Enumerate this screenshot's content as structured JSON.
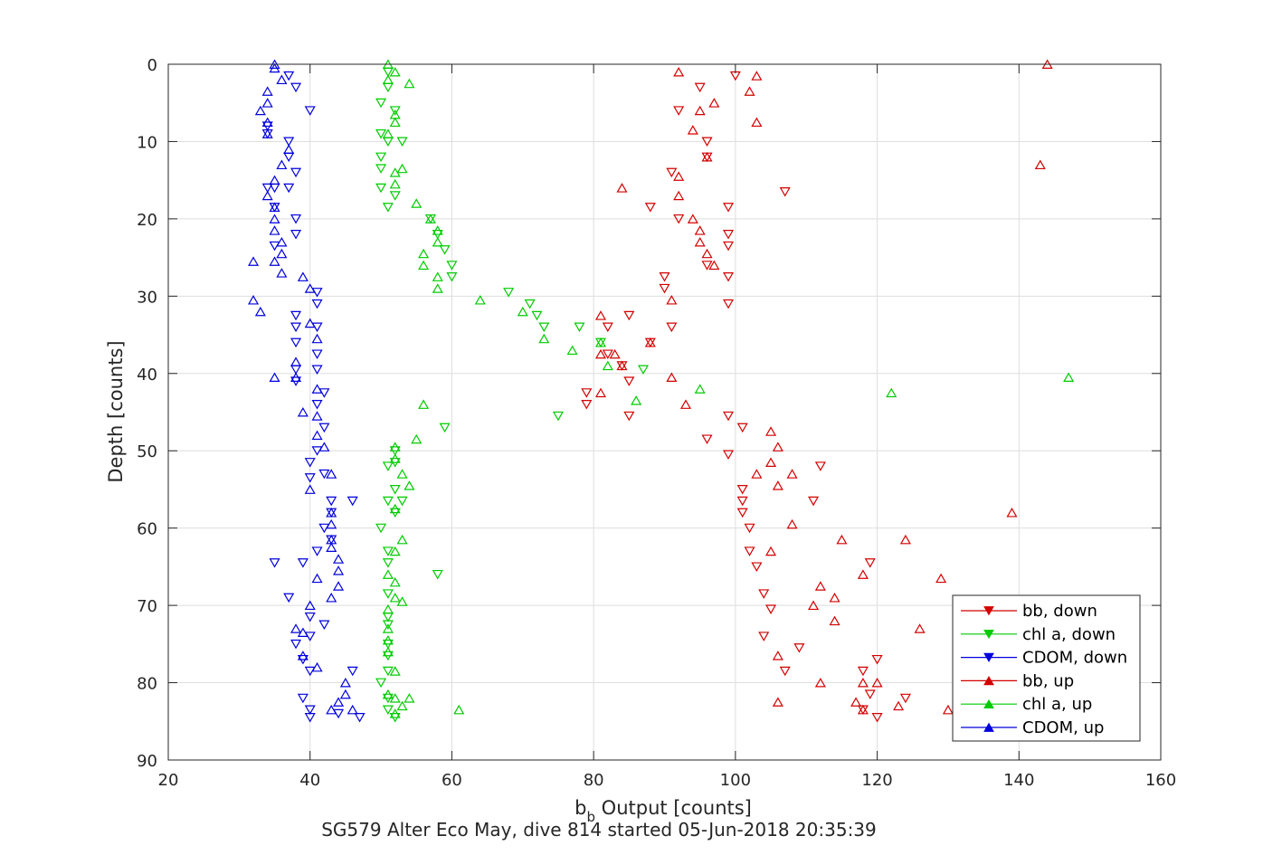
{
  "chart_data": {
    "type": "scatter",
    "title": "",
    "subtitle": "SG579 Alter Eco May, dive 814 started 05-Jun-2018 20:35:39",
    "xlabel_main": "b",
    "xlabel_sub": "b",
    "xlabel_rest": " Output [counts]",
    "ylabel": "Depth [counts]",
    "xlim": [
      20,
      160
    ],
    "ylim": [
      0,
      90
    ],
    "y_reversed": true,
    "xticks": [
      "20",
      "40",
      "60",
      "80",
      "100",
      "120",
      "140",
      "160"
    ],
    "yticks": [
      "0",
      "10",
      "20",
      "30",
      "40",
      "50",
      "60",
      "70",
      "80",
      "90"
    ],
    "grid": true,
    "legend_position": "bottom-right",
    "series": [
      {
        "name": "bb, down",
        "color": "#d40000",
        "marker": "triangle-down",
        "points": [
          [
            100,
            1.5
          ],
          [
            95,
            3
          ],
          [
            92,
            6
          ],
          [
            96,
            10
          ],
          [
            96,
            12
          ],
          [
            91,
            14
          ],
          [
            107,
            16.5
          ],
          [
            88,
            18.5
          ],
          [
            99,
            18.5
          ],
          [
            92,
            20
          ],
          [
            99,
            22
          ],
          [
            99,
            23.5
          ],
          [
            96,
            26
          ],
          [
            90,
            27.5
          ],
          [
            99,
            27.5
          ],
          [
            90,
            29
          ],
          [
            99,
            31
          ],
          [
            85,
            32.5
          ],
          [
            82,
            34
          ],
          [
            91,
            34
          ],
          [
            88,
            36
          ],
          [
            82,
            37.5
          ],
          [
            84,
            39
          ],
          [
            85,
            41
          ],
          [
            79,
            42.5
          ],
          [
            79,
            44
          ],
          [
            85,
            45.5
          ],
          [
            99,
            45.5
          ],
          [
            101,
            47
          ],
          [
            96,
            48.5
          ],
          [
            99,
            50.5
          ],
          [
            112,
            52
          ],
          [
            101,
            55
          ],
          [
            101,
            56.5
          ],
          [
            111,
            56.5
          ],
          [
            101,
            58
          ],
          [
            102,
            60
          ],
          [
            119,
            64.5
          ],
          [
            102,
            63
          ],
          [
            103,
            65
          ],
          [
            104,
            68.5
          ],
          [
            105,
            70.5
          ],
          [
            104,
            74
          ],
          [
            109,
            75.5
          ],
          [
            120,
            77
          ],
          [
            107,
            78.5
          ],
          [
            118,
            78.5
          ],
          [
            119,
            81.5
          ],
          [
            124,
            82
          ],
          [
            118,
            83.5
          ],
          [
            120,
            84.5
          ]
        ]
      },
      {
        "name": "chl a, down",
        "color": "#00cc00",
        "marker": "triangle-down",
        "points": [
          [
            51,
            1
          ],
          [
            51,
            3
          ],
          [
            50,
            5
          ],
          [
            52,
            6
          ],
          [
            50,
            9
          ],
          [
            51,
            10
          ],
          [
            53,
            10
          ],
          [
            50,
            12
          ],
          [
            50,
            13.5
          ],
          [
            52,
            17
          ],
          [
            50,
            16
          ],
          [
            51,
            18.5
          ],
          [
            57,
            20
          ],
          [
            58,
            22
          ],
          [
            59,
            24
          ],
          [
            60,
            26
          ],
          [
            60,
            27.5
          ],
          [
            68,
            29.5
          ],
          [
            71,
            31
          ],
          [
            72,
            32.5
          ],
          [
            73,
            34
          ],
          [
            78,
            34
          ],
          [
            81,
            36
          ],
          [
            87,
            39.5
          ],
          [
            75,
            45.5
          ],
          [
            59,
            47
          ],
          [
            52,
            50
          ],
          [
            52,
            51.5
          ],
          [
            51,
            52
          ],
          [
            52,
            55
          ],
          [
            53,
            56.5
          ],
          [
            51,
            56.5
          ],
          [
            52,
            58
          ],
          [
            50,
            60
          ],
          [
            51,
            63
          ],
          [
            58,
            66
          ],
          [
            51,
            64.5
          ],
          [
            51,
            68.5
          ],
          [
            51,
            71.5
          ],
          [
            51,
            72.5
          ],
          [
            51,
            75
          ],
          [
            51,
            76.5
          ],
          [
            51,
            78.5
          ],
          [
            50,
            80
          ],
          [
            51,
            82
          ],
          [
            51,
            83.5
          ],
          [
            52,
            84.5
          ]
        ]
      },
      {
        "name": "CDOM, down",
        "color": "#0000dd",
        "marker": "triangle-down",
        "points": [
          [
            37,
            1.5
          ],
          [
            38,
            3
          ],
          [
            40,
            6
          ],
          [
            34,
            8
          ],
          [
            34,
            9
          ],
          [
            37,
            10
          ],
          [
            37,
            12
          ],
          [
            38,
            14
          ],
          [
            34,
            16
          ],
          [
            35,
            16
          ],
          [
            37,
            16
          ],
          [
            35,
            18.5
          ],
          [
            38,
            20
          ],
          [
            38,
            22
          ],
          [
            35,
            23.5
          ],
          [
            41,
            29.5
          ],
          [
            41,
            31
          ],
          [
            38,
            32.5
          ],
          [
            38,
            34
          ],
          [
            41,
            34
          ],
          [
            38,
            36
          ],
          [
            41,
            37.5
          ],
          [
            38,
            39.5
          ],
          [
            41,
            39.5
          ],
          [
            38,
            41
          ],
          [
            42,
            42.5
          ],
          [
            41,
            44
          ],
          [
            42,
            47
          ],
          [
            41,
            50
          ],
          [
            40,
            51.5
          ],
          [
            42,
            53
          ],
          [
            40,
            53.5
          ],
          [
            43,
            56.5
          ],
          [
            46,
            56.5
          ],
          [
            43,
            58
          ],
          [
            42,
            60
          ],
          [
            43,
            61.5
          ],
          [
            41,
            63
          ],
          [
            35,
            64.5
          ],
          [
            39,
            64.5
          ],
          [
            37,
            69
          ],
          [
            40,
            71.5
          ],
          [
            42,
            72.5
          ],
          [
            40,
            74
          ],
          [
            38,
            75
          ],
          [
            39,
            77
          ],
          [
            40,
            78.5
          ],
          [
            46,
            78.5
          ],
          [
            39,
            82
          ],
          [
            40,
            83.5
          ],
          [
            44,
            84
          ],
          [
            40,
            84.5
          ],
          [
            47,
            84.5
          ]
        ]
      },
      {
        "name": "bb, up",
        "color": "#d40000",
        "marker": "triangle-up",
        "points": [
          [
            144,
            0
          ],
          [
            92,
            1
          ],
          [
            103,
            1.5
          ],
          [
            102,
            3.5
          ],
          [
            97,
            5
          ],
          [
            95,
            6
          ],
          [
            103,
            7.5
          ],
          [
            94,
            8.5
          ],
          [
            96,
            12
          ],
          [
            143,
            13
          ],
          [
            92,
            14.5
          ],
          [
            84,
            16
          ],
          [
            92,
            17
          ],
          [
            94,
            20
          ],
          [
            95,
            21.5
          ],
          [
            95,
            23
          ],
          [
            96,
            24.5
          ],
          [
            97,
            26
          ],
          [
            91,
            30.5
          ],
          [
            81,
            32.5
          ],
          [
            88,
            36
          ],
          [
            83,
            37.5
          ],
          [
            81,
            37.5
          ],
          [
            84,
            39
          ],
          [
            91,
            40.5
          ],
          [
            81,
            42.5
          ],
          [
            93,
            44
          ],
          [
            105,
            47.5
          ],
          [
            106,
            49.5
          ],
          [
            105,
            51.5
          ],
          [
            103,
            53
          ],
          [
            108,
            53
          ],
          [
            106,
            54.5
          ],
          [
            139,
            58
          ],
          [
            108,
            59.5
          ],
          [
            115,
            61.5
          ],
          [
            124,
            61.5
          ],
          [
            105,
            63
          ],
          [
            118,
            66
          ],
          [
            129,
            66.5
          ],
          [
            112,
            67.5
          ],
          [
            114,
            69
          ],
          [
            111,
            70
          ],
          [
            114,
            72
          ],
          [
            126,
            73
          ],
          [
            106,
            76.5
          ],
          [
            112,
            80
          ],
          [
            118,
            80
          ],
          [
            120,
            80
          ],
          [
            117,
            82.5
          ],
          [
            106,
            82.5
          ],
          [
            123,
            83
          ],
          [
            130,
            83.5
          ],
          [
            118,
            83.5
          ]
        ]
      },
      {
        "name": "chl a, up",
        "color": "#00cc00",
        "marker": "triangle-up",
        "points": [
          [
            51,
            0
          ],
          [
            52,
            1
          ],
          [
            54,
            2.5
          ],
          [
            51,
            2
          ],
          [
            52,
            6.5
          ],
          [
            52,
            7.5
          ],
          [
            51,
            9
          ],
          [
            52,
            14
          ],
          [
            53,
            13.5
          ],
          [
            52,
            15.5
          ],
          [
            55,
            18
          ],
          [
            57,
            20
          ],
          [
            58,
            21.5
          ],
          [
            58,
            23
          ],
          [
            56,
            24.5
          ],
          [
            56,
            26
          ],
          [
            58,
            27.5
          ],
          [
            58,
            29
          ],
          [
            64,
            30.5
          ],
          [
            70,
            32
          ],
          [
            73,
            35.5
          ],
          [
            77,
            37
          ],
          [
            82,
            39
          ],
          [
            81,
            36
          ],
          [
            147,
            40.5
          ],
          [
            95,
            42
          ],
          [
            122,
            42.5
          ],
          [
            86,
            43.5
          ],
          [
            56,
            44
          ],
          [
            55,
            48.5
          ],
          [
            52,
            49.5
          ],
          [
            52,
            51
          ],
          [
            53,
            53
          ],
          [
            54,
            54.5
          ],
          [
            52,
            57.5
          ],
          [
            53,
            61.5
          ],
          [
            52,
            63
          ],
          [
            51,
            66
          ],
          [
            52,
            67
          ],
          [
            52,
            69
          ],
          [
            53,
            69.5
          ],
          [
            51,
            70.5
          ],
          [
            51,
            73
          ],
          [
            51,
            74.5
          ],
          [
            51,
            76
          ],
          [
            52,
            78.5
          ],
          [
            51,
            81.5
          ],
          [
            52,
            82
          ],
          [
            54,
            82
          ],
          [
            53,
            83
          ],
          [
            52,
            84
          ],
          [
            61,
            83.5
          ]
        ]
      },
      {
        "name": "CDOM, up",
        "color": "#0000dd",
        "marker": "triangle-up",
        "points": [
          [
            35,
            0
          ],
          [
            35,
            0.5
          ],
          [
            36,
            2
          ],
          [
            34,
            3.5
          ],
          [
            34,
            5
          ],
          [
            33,
            6
          ],
          [
            34,
            7.5
          ],
          [
            34,
            9
          ],
          [
            37,
            11
          ],
          [
            36,
            13
          ],
          [
            35,
            15
          ],
          [
            34,
            17
          ],
          [
            35,
            18.5
          ],
          [
            35,
            20
          ],
          [
            35,
            21.5
          ],
          [
            36,
            23
          ],
          [
            36,
            24.5
          ],
          [
            32,
            25.5
          ],
          [
            35,
            25.5
          ],
          [
            36,
            27
          ],
          [
            39,
            27.5
          ],
          [
            40,
            29
          ],
          [
            32,
            30.5
          ],
          [
            33,
            32
          ],
          [
            40,
            33.5
          ],
          [
            41,
            35.5
          ],
          [
            38,
            38.5
          ],
          [
            35,
            40.5
          ],
          [
            38,
            40.5
          ],
          [
            41,
            42
          ],
          [
            39,
            45
          ],
          [
            41,
            45.5
          ],
          [
            41,
            48
          ],
          [
            42,
            49.5
          ],
          [
            43,
            53
          ],
          [
            40,
            55
          ],
          [
            43,
            58
          ],
          [
            43,
            59.5
          ],
          [
            43,
            61.5
          ],
          [
            43,
            62.5
          ],
          [
            44,
            64
          ],
          [
            44,
            65.5
          ],
          [
            41,
            66.5
          ],
          [
            44,
            67.5
          ],
          [
            43,
            69
          ],
          [
            40,
            70
          ],
          [
            38,
            73
          ],
          [
            39,
            73.5
          ],
          [
            39,
            76.5
          ],
          [
            41,
            78
          ],
          [
            45,
            80
          ],
          [
            45,
            81.5
          ],
          [
            44,
            82.5
          ],
          [
            43,
            83.5
          ],
          [
            46,
            83.5
          ]
        ]
      }
    ]
  }
}
